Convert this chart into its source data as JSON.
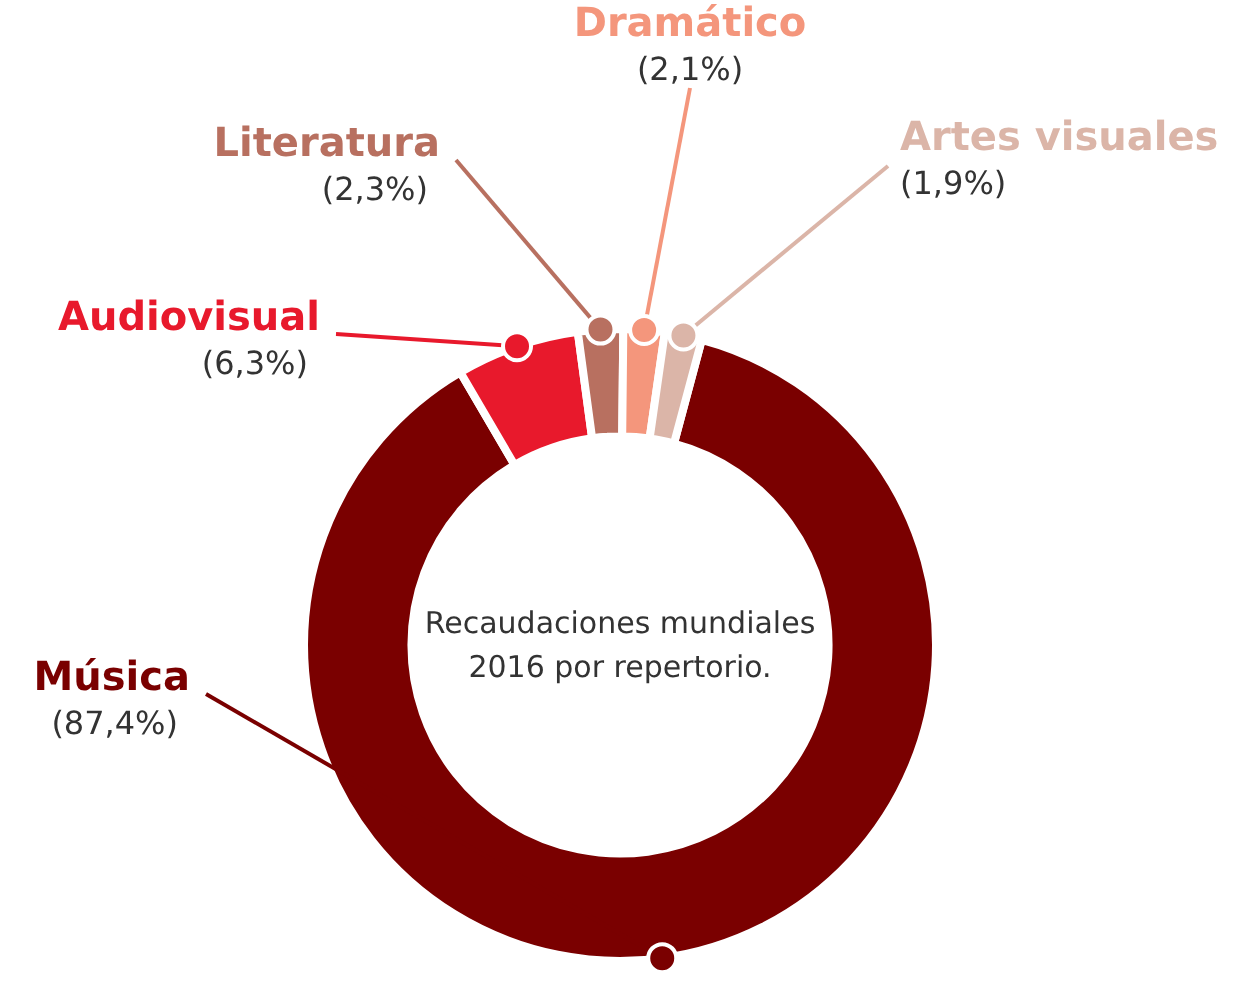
{
  "chart_data": {
    "type": "donut",
    "title": "Recaudaciones mundiales 2016 por repertorio.",
    "categories": [
      "Música",
      "Audiovisual",
      "Literatura",
      "Dramático",
      "Artes visuales"
    ],
    "values": [
      87.4,
      6.3,
      2.3,
      2.1,
      1.9
    ],
    "colors": [
      "#7a0000",
      "#e8192c",
      "#b87060",
      "#f4967c",
      "#dbb5a8"
    ],
    "value_labels": [
      "(87,4%)",
      "(6,3%)",
      "(2,3%)",
      "(2,1%)",
      "(1,9%)"
    ],
    "legend": false
  }
}
